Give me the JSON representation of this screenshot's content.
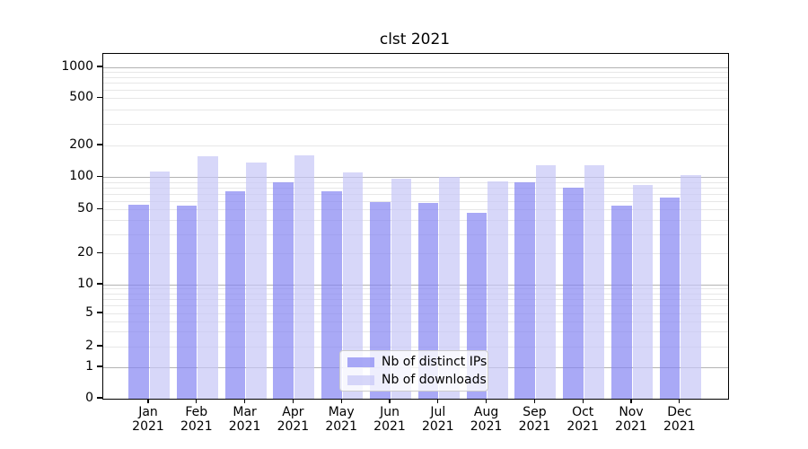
{
  "chart": {
    "title": "clst 2021"
  },
  "chart_data": {
    "type": "bar",
    "title": "clst 2021",
    "yscale": "symlog",
    "categories": [
      "Jan 2021",
      "Feb 2021",
      "Mar 2021",
      "Apr 2021",
      "May 2021",
      "Jun 2021",
      "Jul 2021",
      "Aug 2021",
      "Sep 2021",
      "Oct 2021",
      "Nov 2021",
      "Dec 2021"
    ],
    "series": [
      {
        "name": "Nb of distinct IPs",
        "color": "rgba(133,133,242,0.7)",
        "values": [
          56,
          55,
          75,
          90,
          75,
          59,
          58,
          47,
          90,
          81,
          55,
          65
        ]
      },
      {
        "name": "Nb of downloads",
        "color": "rgba(198,198,247,0.7)",
        "values": [
          115,
          157,
          138,
          163,
          112,
          98,
          101,
          92,
          130,
          130,
          86,
          106
        ]
      }
    ],
    "yticks": [
      0,
      1,
      2,
      5,
      10,
      20,
      50,
      100,
      200,
      500,
      1000
    ],
    "ylim": [
      0,
      1350
    ],
    "grid": "both",
    "legend_position": "bottom-center-inside",
    "xlabel": "",
    "ylabel": ""
  }
}
